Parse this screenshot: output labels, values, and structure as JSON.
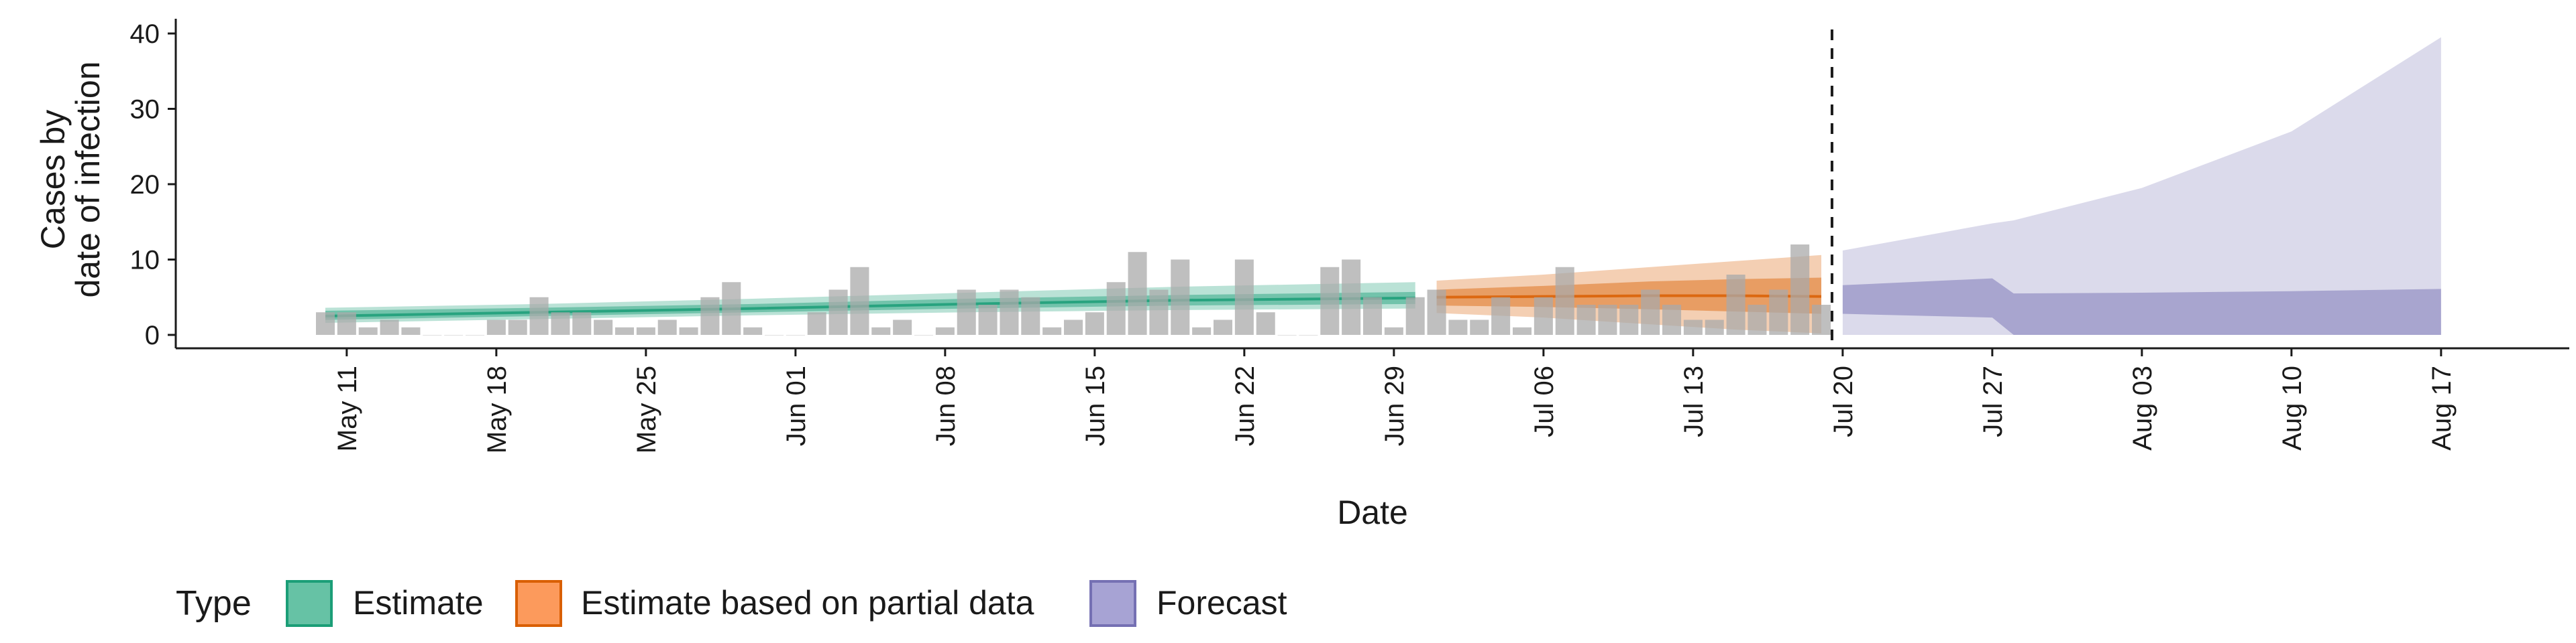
{
  "chart_data": {
    "type": "bar",
    "xlabel": "Date",
    "ylabel": [
      "Cases by",
      "date of infection"
    ],
    "ylim": [
      0,
      40
    ],
    "yticks": [
      0,
      10,
      20,
      30,
      40
    ],
    "xlim": [
      "2021-05-03",
      "2021-08-23"
    ],
    "xticks": [
      {
        "date": "2021-05-11",
        "label": "May 11"
      },
      {
        "date": "2021-05-18",
        "label": "May 18"
      },
      {
        "date": "2021-05-25",
        "label": "May 25"
      },
      {
        "date": "2021-06-01",
        "label": "Jun 01"
      },
      {
        "date": "2021-06-08",
        "label": "Jun 08"
      },
      {
        "date": "2021-06-15",
        "label": "Jun 15"
      },
      {
        "date": "2021-06-22",
        "label": "Jun 22"
      },
      {
        "date": "2021-06-29",
        "label": "Jun 29"
      },
      {
        "date": "2021-07-06",
        "label": "Jul 06"
      },
      {
        "date": "2021-07-13",
        "label": "Jul 13"
      },
      {
        "date": "2021-07-20",
        "label": "Jul 20"
      },
      {
        "date": "2021-07-27",
        "label": "Jul 27"
      },
      {
        "date": "2021-08-03",
        "label": "Aug 03"
      },
      {
        "date": "2021-08-10",
        "label": "Aug 10"
      },
      {
        "date": "2021-08-17",
        "label": "Aug 17"
      }
    ],
    "forecast_date": "2021-07-19",
    "bars": {
      "start_date": "2021-05-10",
      "values": [
        3,
        3,
        1,
        2,
        1,
        0,
        0,
        0,
        2,
        2,
        5,
        3,
        3,
        2,
        1,
        1,
        2,
        1,
        5,
        7,
        1,
        0,
        0,
        3,
        6,
        9,
        1,
        2,
        0,
        1,
        6,
        4,
        6,
        5,
        1,
        2,
        3,
        7,
        11,
        6,
        10,
        1,
        2,
        10,
        3,
        0,
        0,
        9,
        10,
        5,
        1,
        5,
        6,
        2,
        2,
        5,
        1,
        5,
        9,
        4,
        4,
        4,
        6,
        4,
        2,
        2,
        8,
        4,
        6,
        12,
        4
      ]
    },
    "series": [
      {
        "name": "Estimate",
        "color": "#1b9e77",
        "points": [
          {
            "date": "2021-05-10",
            "median": 2.5,
            "inner": [
              2.0,
              3.2
            ],
            "outer": [
              1.6,
              3.6
            ]
          },
          {
            "date": "2021-05-20",
            "median": 3.0,
            "inner": [
              2.5,
              3.6
            ],
            "outer": [
              2.1,
              4.1
            ]
          },
          {
            "date": "2021-05-30",
            "median": 3.5,
            "inner": [
              3.0,
              4.1
            ],
            "outer": [
              2.6,
              4.8
            ]
          },
          {
            "date": "2021-06-09",
            "median": 4.1,
            "inner": [
              3.5,
              4.8
            ],
            "outer": [
              3.0,
              5.6
            ]
          },
          {
            "date": "2021-06-19",
            "median": 4.6,
            "inner": [
              3.9,
              5.3
            ],
            "outer": [
              3.3,
              6.4
            ]
          },
          {
            "date": "2021-06-30",
            "median": 4.9,
            "inner": [
              4.1,
              5.7
            ],
            "outer": [
              3.5,
              7.0
            ]
          }
        ]
      },
      {
        "name": "Estimate based on partial data",
        "color": "#d95f02",
        "points": [
          {
            "date": "2021-07-01",
            "median": 5.0,
            "inner": [
              3.9,
              6.0
            ],
            "outer": [
              2.9,
              7.2
            ]
          },
          {
            "date": "2021-07-06",
            "median": 5.1,
            "inner": [
              3.7,
              6.5
            ],
            "outer": [
              2.3,
              8.0
            ]
          },
          {
            "date": "2021-07-11",
            "median": 5.2,
            "inner": [
              3.4,
              7.1
            ],
            "outer": [
              1.4,
              9.0
            ]
          },
          {
            "date": "2021-07-15",
            "median": 5.2,
            "inner": [
              3.1,
              7.4
            ],
            "outer": [
              0.7,
              9.8
            ]
          },
          {
            "date": "2021-07-19",
            "median": 5.1,
            "inner": [
              2.8,
              7.6
            ],
            "outer": [
              0.2,
              10.6
            ]
          }
        ]
      },
      {
        "name": "Forecast",
        "color": "#7570b3",
        "points": [
          {
            "date": "2021-07-20",
            "inner": [
              2.8,
              6.6
            ],
            "outer": [
              0.0,
              11.2
            ]
          },
          {
            "date": "2021-07-27",
            "inner": [
              2.3,
              7.5
            ],
            "outer": [
              0.0,
              14.8
            ]
          },
          {
            "date": "2021-07-28",
            "inner": [
              0.0,
              5.5
            ],
            "outer": [
              0.0,
              15.2
            ]
          },
          {
            "date": "2021-08-03",
            "inner": [
              0.0,
              5.6
            ],
            "outer": [
              0.0,
              19.5
            ]
          },
          {
            "date": "2021-08-10",
            "inner": [
              0.0,
              5.8
            ],
            "outer": [
              0.0,
              27.0
            ]
          },
          {
            "date": "2021-08-17",
            "inner": [
              0.0,
              6.1
            ],
            "outer": [
              0.0,
              39.5
            ]
          }
        ]
      }
    ],
    "legend": {
      "title": "Type",
      "position": "bottom-left",
      "items": [
        {
          "label": "Estimate",
          "fill": "#66c2a5",
          "border": "#1b9e77"
        },
        {
          "label": "Estimate based on partial data",
          "fill": "#fc9a5c",
          "border": "#d95f02"
        },
        {
          "label": "Forecast",
          "fill": "#a7a3d4",
          "border": "#7570b3"
        }
      ]
    },
    "grid": false
  }
}
